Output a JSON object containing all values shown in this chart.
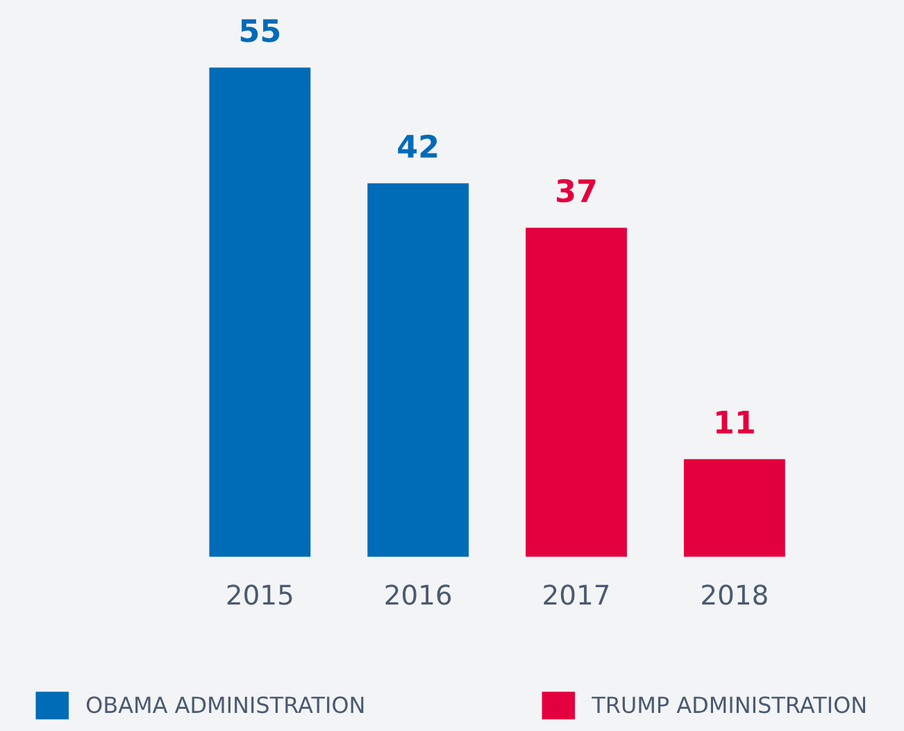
{
  "chart_data": {
    "type": "bar",
    "categories": [
      "2015",
      "2016",
      "2017",
      "2018"
    ],
    "series": [
      {
        "name": "OBAMA ADMINISTRATION",
        "color": "#006bb6",
        "values": [
          55,
          42,
          null,
          null
        ]
      },
      {
        "name": "TRUMP ADMINISTRATION",
        "color": "#e4003f",
        "values": [
          null,
          null,
          37,
          11
        ]
      }
    ],
    "data_labels": true,
    "legend": "bottom",
    "grid": false,
    "relative": false
  }
}
